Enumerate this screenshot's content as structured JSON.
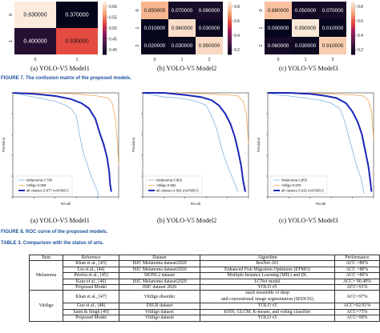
{
  "confusion": [
    {
      "caption": "(a) YOLO-V5 Model1",
      "cells": [
        [
          "0.630000",
          "0.370000"
        ],
        [
          "0.400000",
          "0.530000"
        ]
      ],
      "ticks_x": [
        "0",
        "1"
      ],
      "ticks_y": [
        "0",
        "1"
      ],
      "cbar": [
        "0.60",
        "0.55",
        "0.50",
        "0.45",
        "0.40"
      ]
    },
    {
      "caption": "(b) YOLO-V5 Model2",
      "cells": [
        [
          "0.850000",
          "0.070000",
          "0.080000"
        ],
        [
          "0.010000",
          "0.960000",
          "0.030000"
        ],
        [
          "0.020000",
          "0.030000",
          "0.950000"
        ]
      ],
      "ticks_x": [
        "0",
        "1",
        "2"
      ],
      "ticks_y": [
        "0",
        "1",
        "2"
      ],
      "cbar": [
        "0.8",
        "0.6",
        "0.4",
        "0.2"
      ]
    },
    {
      "caption": "(c) YOLO-V5 Model3",
      "cells": [
        [
          "0.880000",
          "0.050000",
          "0.070000"
        ],
        [
          "0.000000",
          "0.990000",
          "0.010000"
        ],
        [
          "0.060000",
          "0.030000",
          "0.910000"
        ]
      ],
      "ticks_x": [
        "0",
        "1",
        "2"
      ],
      "ticks_y": [
        "0",
        "1",
        "2"
      ],
      "cbar": [
        "0.8",
        "0.6",
        "0.4",
        "0.2"
      ]
    }
  ],
  "figure7": {
    "label": "FIGURE 7.",
    "text": "The confusion matrix of the proposed models."
  },
  "roc": [
    {
      "caption": "(a) YOLO-V5 Model1",
      "legend": [
        "Melanoma 0.796",
        "Vitiligo 0.958",
        "all classes 0.877 mAP@0.5"
      ],
      "xlabel": "Recall",
      "ylabel": "Precision"
    },
    {
      "caption": "(b) YOLO-V5 Model2",
      "legend": [
        "Melanoma 0.803",
        "Vitiligo 0.981",
        "all classes 0.892 mAP@0.5"
      ],
      "xlabel": "Recall",
      "ylabel": "Precision"
    },
    {
      "caption": "(c) YOLO-V5 Model3",
      "legend": [
        "Melanoma 0.853",
        "Vitiligo 0.976",
        "all classes 0.915 mAP@0.5"
      ],
      "xlabel": "Recall",
      "ylabel": "Precision"
    }
  ],
  "figure8": {
    "label": "FIGURE 8.",
    "text": "ROC curve of the proposed models."
  },
  "table3": {
    "label": "TABLE 3.",
    "text": "Comparison with the status of arts."
  },
  "table": {
    "headers": [
      "Item",
      "Reference",
      "Dataset",
      "Algorithm",
      "Performance"
    ],
    "groups": [
      {
        "item": "Melanoma",
        "rows": [
          [
            "Khan et al., [43]",
            "ISIC Melanoma dataset2020",
            "ResNet-101",
            "ACC =80%"
          ],
          [
            "Liu et al., [44]",
            "ISIC Melanoma dataset2020",
            "Enhanced Fish Migration Optimizer (EFMO)",
            "ACC =80%"
          ],
          [
            "Pereira et al., [45]",
            "SKINL2 dataset",
            "Multiple Instance Learning (MIL) and DL",
            "ACC =80%"
          ],
          [
            "Kaur et al., [46]",
            "ISIC Melanoma dataset2020",
            "LCNet model",
            "ACC= 90.48%"
          ],
          [
            "Proposed Model",
            "ISIC dataset 2020",
            "YOLO v5",
            "ACC=91%"
          ]
        ]
      },
      {
        "item": "Vitiligo",
        "rows": [
          [
            "Khan et al., [47]",
            "Vitiligo disorder",
            "stack ensemble of deep|and conventional image segmentation (SEDCIS)",
            "ACC=97%"
          ],
          [
            "Guo et al., [48]",
            "DSLR dataset",
            "YOLO v5",
            "ACC=92.91%"
          ],
          [
            "Saini & Singh [49]",
            "Vitiligo dataset",
            "KNN, GLCM, K-means, and voting classifier",
            "ACC=75%"
          ],
          [
            "Proposed Model",
            "Vitiligo dataset",
            "YOLO v5",
            "ACC=99%"
          ]
        ]
      }
    ]
  }
}
